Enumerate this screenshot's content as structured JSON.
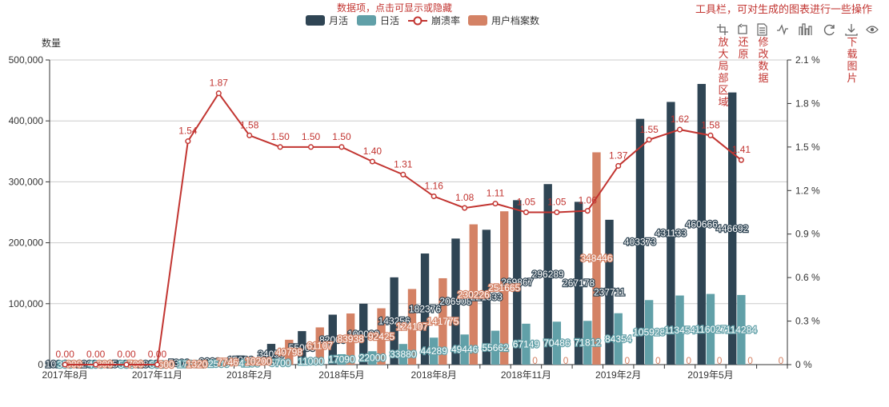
{
  "annotations": {
    "legend_note": "数据项，点击可显示或隐藏",
    "toolbox_note": "工具栏，可对生成的图表进行一些操作",
    "toolbox_items": [
      {
        "icon": "zoom-area-icon",
        "label": "放大局部区域"
      },
      {
        "icon": "restore-icon",
        "label": "还原"
      },
      {
        "icon": "data-view-icon",
        "label": "修改数据"
      },
      {
        "icon": "line-chart-icon",
        "label": ""
      },
      {
        "icon": "bar-chart-icon",
        "label": ""
      },
      {
        "icon": "refresh-icon",
        "label": ""
      },
      {
        "icon": "download-icon",
        "label": "下载图片"
      },
      {
        "icon": "eye-icon",
        "label": ""
      }
    ]
  },
  "colors": {
    "monthly": "#2f4554",
    "daily": "#61a0a8",
    "crash": "#c23531",
    "archives": "#d48265",
    "annotation": "#c23531",
    "axis": "#333333",
    "grid": "#cccccc"
  },
  "chart_data": {
    "type": "bar",
    "ylabel": "数量",
    "ylim": [
      0,
      500000
    ],
    "y_ticks": [
      "0",
      "100,000",
      "200,000",
      "300,000",
      "400,000",
      "500,000"
    ],
    "y2_ticks": [
      "0 %",
      "0.3 %",
      "0.6 %",
      "0.9 %",
      "1.2 %",
      "1.5 %",
      "1.8 %",
      "2.1 %"
    ],
    "y2lim": [
      0,
      2.1
    ],
    "x_tick_labels": [
      "2017年8月",
      "2017年11月",
      "2018年2月",
      "2018年5月",
      "2018年8月",
      "2018年11月",
      "2019年2月",
      "2019年5月"
    ],
    "legend_placement": "top-center",
    "grid": true,
    "categories": [
      "2017-08",
      "2017-09",
      "2017-10",
      "2017-11",
      "2017-12",
      "2018-01",
      "2018-02",
      "2018-03",
      "2018-04",
      "2018-05",
      "2018-06",
      "2018-07",
      "2018-08",
      "2018-09",
      "2018-10",
      "2018-11",
      "2018-12",
      "2019-01",
      "2019-02",
      "2019-03",
      "2019-04",
      "2019-05",
      "2019-06",
      "2019-07"
    ],
    "series": [
      {
        "name": "月活",
        "kind": "bar",
        "values": [
          1024,
          1200,
          1500,
          1800,
          5300,
          9000,
          15000,
          34050,
          55000,
          82000,
          100000,
          143256,
          182376,
          206908,
          221333,
          269867,
          296289,
          267178,
          237711,
          403373,
          431133,
          460666,
          446692,
          0
        ],
        "labels": [
          "1024",
          "1200",
          "1500",
          "1800",
          "5300",
          "9000",
          "15000",
          "34050",
          "55000",
          "82000",
          "100000",
          "143256",
          "182376",
          "206908",
          "221333",
          "269867",
          "296289",
          "267178",
          "237711",
          "403373",
          "431133",
          "460666",
          "446692",
          ""
        ]
      },
      {
        "name": "日活",
        "kind": "bar",
        "values": [
          350,
          400,
          500,
          600,
          1763,
          2500,
          4100,
          5700,
          11000,
          17090,
          22000,
          33880,
          44289,
          49446,
          55662,
          67149,
          70486,
          71812,
          84354,
          105928,
          113454,
          116027,
          114284,
          0
        ],
        "labels": [
          "350",
          "400",
          "500",
          "600",
          "1763",
          "2500",
          "4100",
          "5700",
          "11000",
          "17090",
          "22000",
          "33880",
          "44289",
          "49446",
          "55662",
          "67149",
          "70486",
          "71812",
          "84354",
          "105928",
          "113454",
          "116027",
          "114284",
          ""
        ]
      },
      {
        "name": "用户档案数",
        "kind": "bar",
        "values": [
          900,
          800,
          700,
          600,
          1320,
          7746,
          10200,
          40798,
          61107,
          83938,
          92425,
          124107,
          141775,
          230226,
          251665,
          0,
          0,
          348446,
          0,
          0,
          0,
          0,
          0,
          0
        ],
        "labels": [
          "900",
          "800",
          "700",
          "600",
          "1320",
          "7746",
          "10200",
          "40798",
          "61107",
          "83938",
          "92425",
          "124107",
          "141775",
          "230226",
          "251665",
          "0",
          "0",
          "348446",
          "0",
          "0",
          "0",
          "0",
          "0",
          "0"
        ]
      },
      {
        "name": "崩溃率",
        "kind": "line",
        "axis": "right",
        "values": [
          0.0,
          0.0,
          0.0,
          0.0,
          1.54,
          1.87,
          1.58,
          1.5,
          1.5,
          1.5,
          1.4,
          1.31,
          1.16,
          1.08,
          1.11,
          1.05,
          1.05,
          1.06,
          1.37,
          1.55,
          1.62,
          1.58,
          1.41,
          null
        ],
        "labels": [
          "0.00",
          "0.00",
          "0.00",
          "0.00",
          "1.54",
          "1.87",
          "1.58",
          "1.50",
          "1.50",
          "1.50",
          "1.40",
          "1.31",
          "1.16",
          "1.08",
          "1.11",
          "1.05",
          "1.05",
          "1.06",
          "1.37",
          "1.55",
          "1.62",
          "1.58",
          "1.41",
          ""
        ]
      }
    ]
  }
}
